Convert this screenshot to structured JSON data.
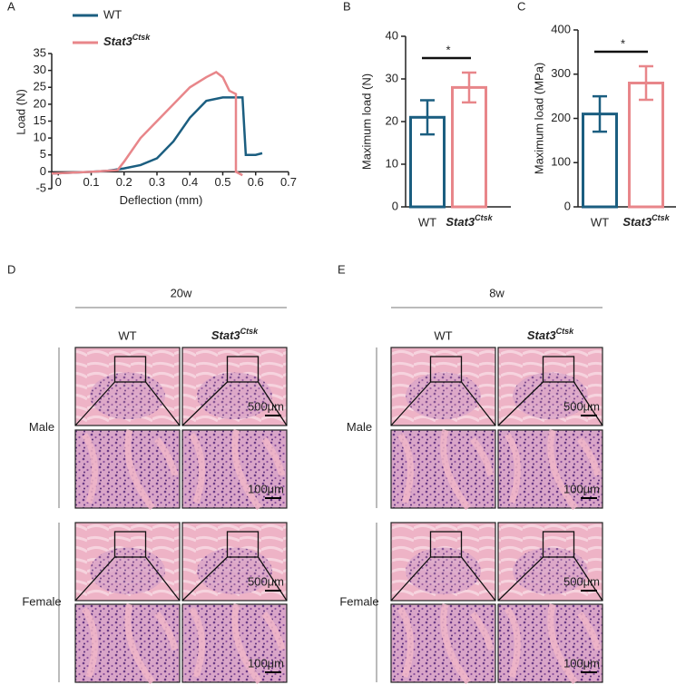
{
  "chart_data": [
    {
      "type": "line",
      "panel_label": "A",
      "xlabel": "Deflection (mm)",
      "ylabel": "Load (N)",
      "xlim": [
        -0.02,
        0.7
      ],
      "xticks": [
        0,
        0.1,
        0.2,
        0.3,
        0.4,
        0.5,
        0.6,
        0.7
      ],
      "ylim": [
        -5,
        35
      ],
      "yticks": [
        -5,
        0,
        5,
        10,
        15,
        20,
        25,
        30,
        35
      ],
      "series": [
        {
          "name": "WT",
          "color": "#1b5e80",
          "x": [
            -0.02,
            0.1,
            0.15,
            0.2,
            0.25,
            0.3,
            0.35,
            0.4,
            0.45,
            0.5,
            0.53,
            0.56,
            0.57,
            0.6,
            0.62
          ],
          "values": [
            -0.5,
            0,
            0.3,
            1,
            2,
            4,
            9,
            16,
            21,
            22,
            22,
            22,
            5,
            5,
            5.5
          ]
        },
        {
          "name": {
            "text": "Stat3",
            "sup": "Ctsk"
          },
          "color": "#e8868a",
          "x": [
            -0.02,
            0.1,
            0.18,
            0.2,
            0.25,
            0.3,
            0.35,
            0.4,
            0.45,
            0.48,
            0.5,
            0.52,
            0.54,
            0.54,
            0.56
          ],
          "values": [
            -0.5,
            0,
            0.5,
            3,
            10,
            15,
            20,
            25,
            28,
            29.5,
            28,
            24,
            23,
            0,
            -1
          ]
        }
      ]
    },
    {
      "type": "bar",
      "panel_label": "B",
      "ylabel": "Maximum load (N)",
      "categories": [
        "WT",
        {
          "text": "Stat3",
          "sup": "Ctsk"
        }
      ],
      "colors": [
        "#1b5e80",
        "#e8868a"
      ],
      "values": [
        21,
        28
      ],
      "errors": [
        4,
        3.5
      ],
      "ylim": [
        0,
        40
      ],
      "yticks": [
        0,
        10,
        20,
        30,
        40
      ],
      "significance": "*"
    },
    {
      "type": "bar",
      "panel_label": "C",
      "ylabel": "Maximum load (MPa)",
      "categories": [
        "WT",
        {
          "text": "Stat3",
          "sup": "Ctsk"
        }
      ],
      "colors": [
        "#1b5e80",
        "#e8868a"
      ],
      "values": [
        210,
        280
      ],
      "errors": [
        40,
        38
      ],
      "ylim": [
        0,
        400
      ],
      "yticks": [
        0,
        100,
        200,
        300,
        400
      ],
      "significance": "*"
    }
  ],
  "histology": [
    {
      "label": "D",
      "age": "20w",
      "columns": [
        "WT",
        {
          "text": "Stat3",
          "sup": "Ctsk"
        }
      ],
      "rows": [
        "Male",
        "Female"
      ],
      "scale_bars": [
        "500μm",
        "100μm"
      ]
    },
    {
      "label": "E",
      "age": "8w",
      "columns": [
        "WT",
        {
          "text": "Stat3",
          "sup": "Ctsk"
        }
      ],
      "rows": [
        "Male",
        "Female"
      ],
      "scale_bars": [
        "500μm",
        "100μm"
      ]
    }
  ]
}
